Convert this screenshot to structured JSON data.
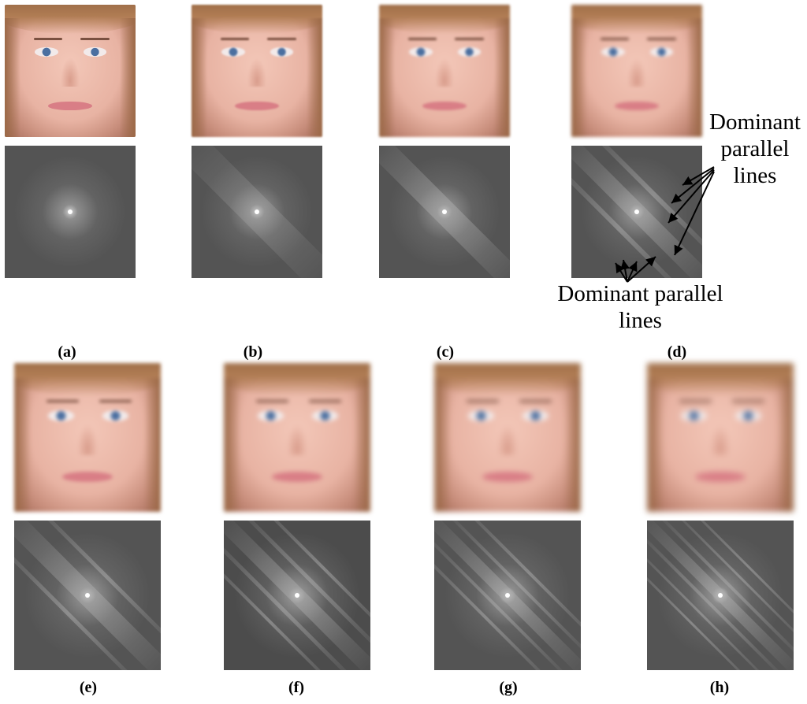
{
  "panels": [
    {
      "label": "(a)"
    },
    {
      "label": "(b)"
    },
    {
      "label": "(c)"
    },
    {
      "label": "(d)"
    },
    {
      "label": "(e)"
    },
    {
      "label": "(f)"
    },
    {
      "label": "(g)"
    },
    {
      "label": "(h)"
    }
  ],
  "annotations": {
    "right_line1": "Dominant",
    "right_line2": "parallel",
    "right_line3": "lines",
    "bottom_line1": "Dominant parallel",
    "bottom_line2": "lines"
  },
  "colors": {
    "spectrum_bg": "#545454",
    "face_tone": "#e8b3a3",
    "eye": "#4b6fa0",
    "lips": "#d97e86"
  }
}
